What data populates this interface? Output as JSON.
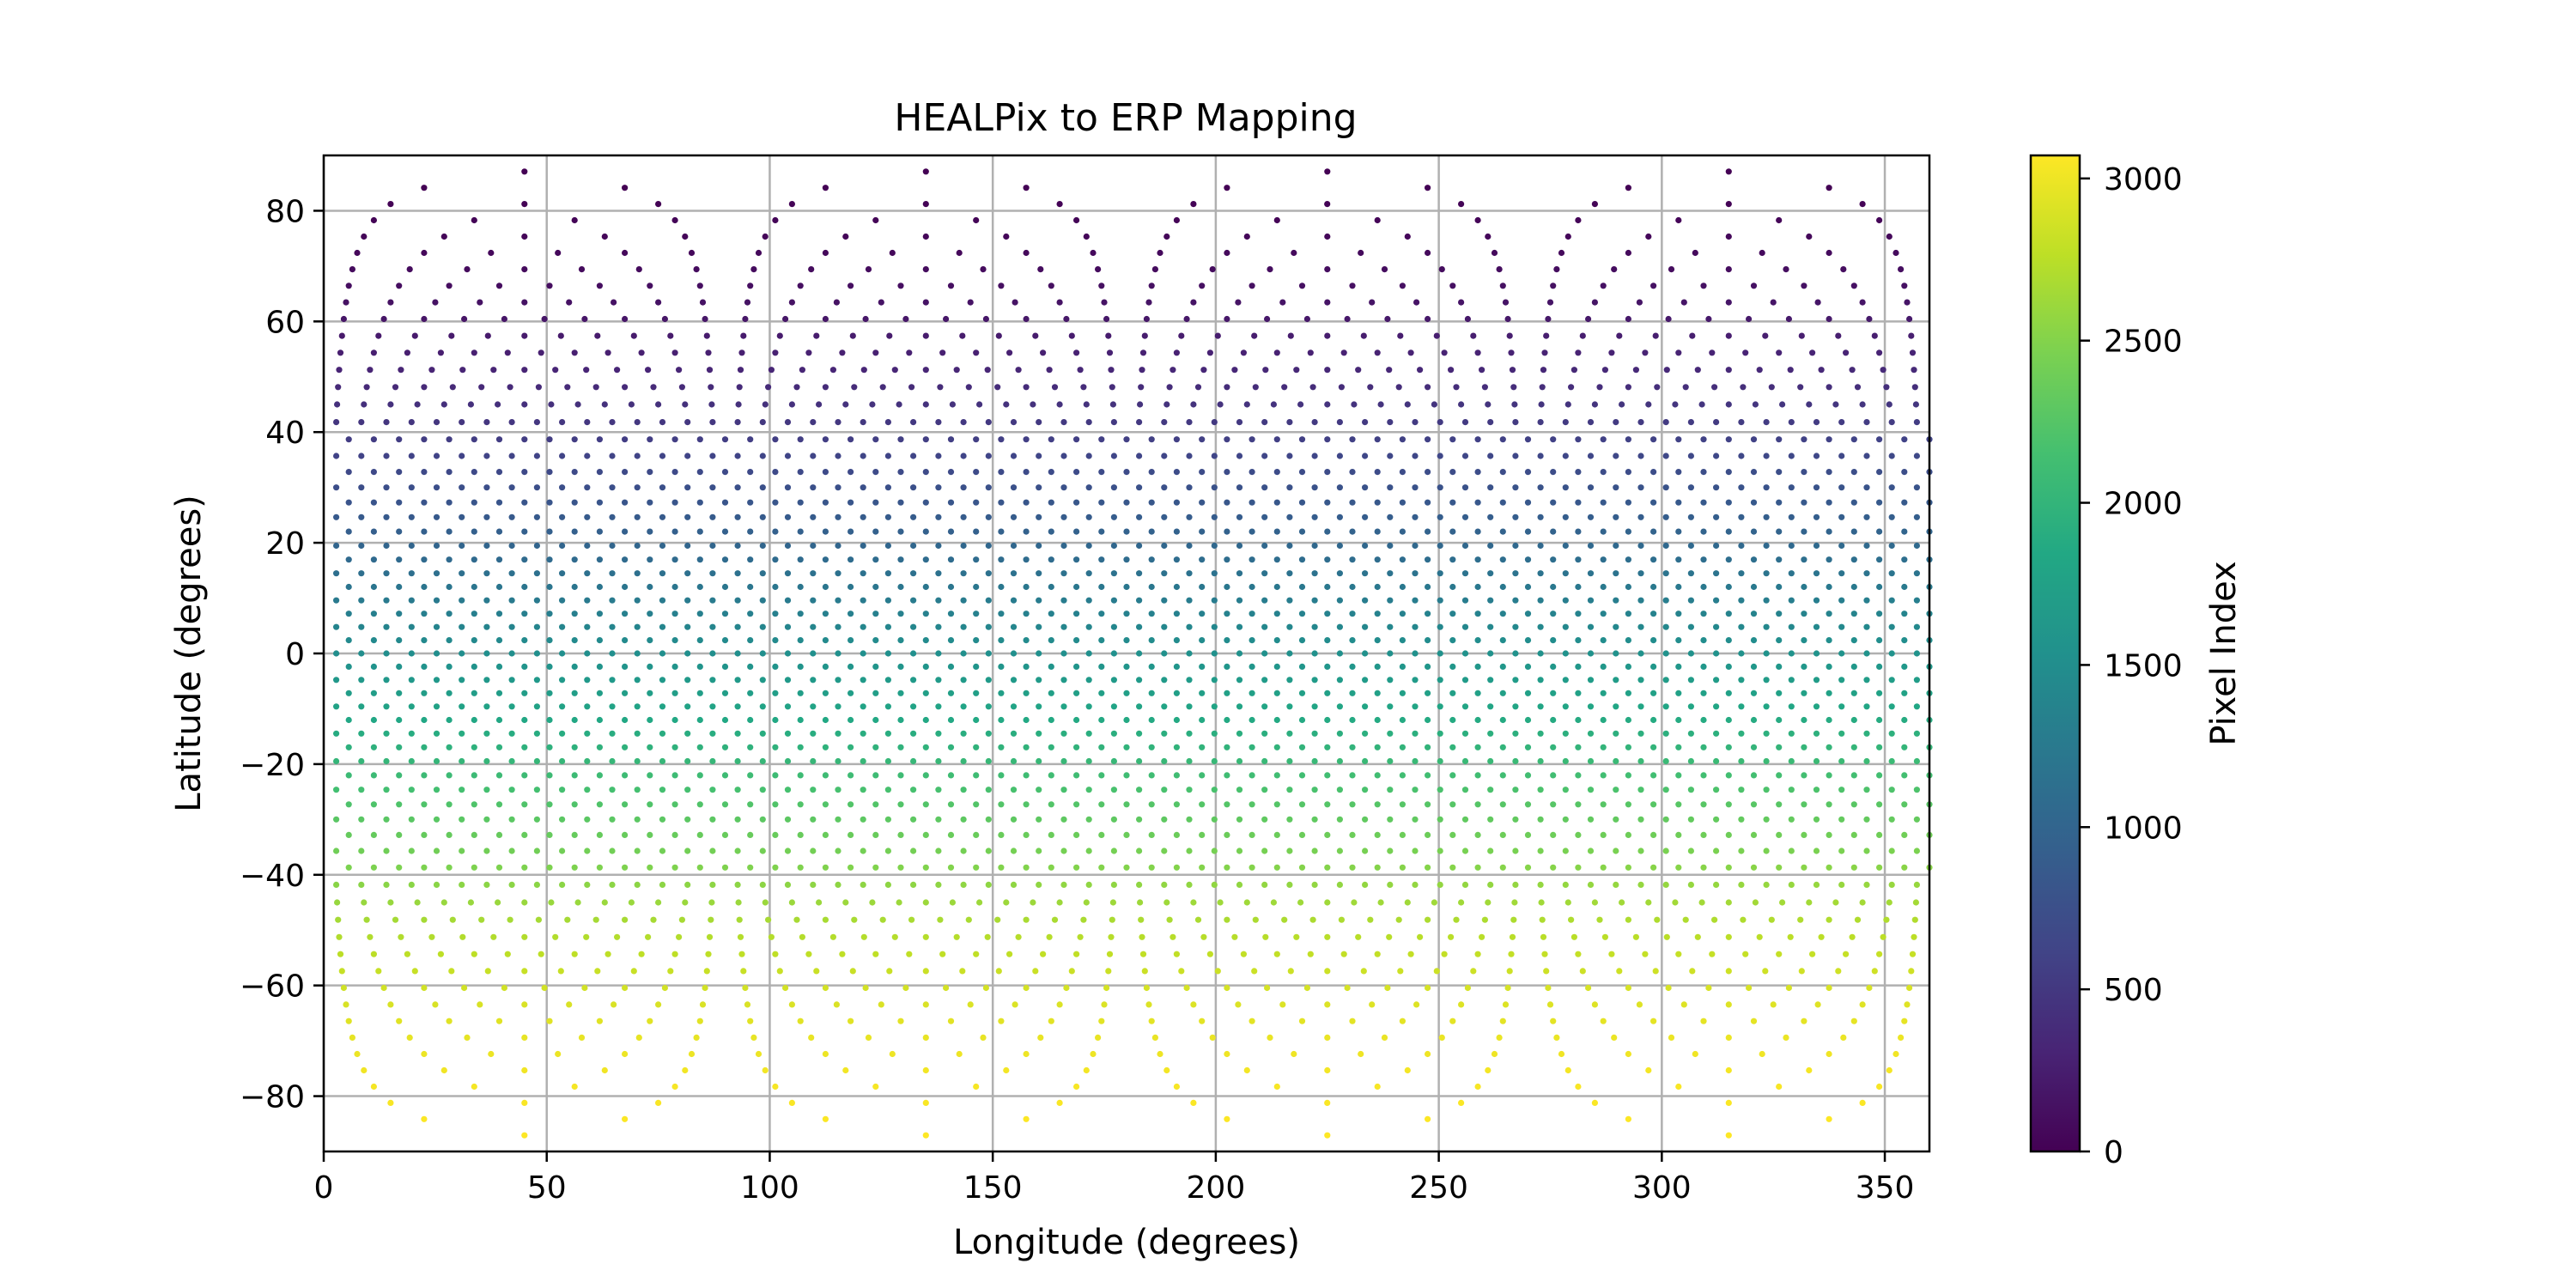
{
  "chart_data": {
    "type": "scatter",
    "title": "HEALPix to ERP Mapping",
    "xlabel": "Longitude (degrees)",
    "ylabel": "Latitude (degrees)",
    "xlim": [
      0,
      360
    ],
    "ylim": [
      -90,
      90
    ],
    "xticks": [
      0,
      50,
      100,
      150,
      200,
      250,
      300,
      350
    ],
    "yticks": [
      -80,
      -60,
      -40,
      -20,
      0,
      20,
      40,
      60,
      80
    ],
    "xtick_labels": [
      "0",
      "50",
      "100",
      "150",
      "200",
      "250",
      "300",
      "350"
    ],
    "ytick_labels": [
      "−80",
      "−60",
      "−40",
      "−20",
      "0",
      "20",
      "40",
      "60",
      "80"
    ],
    "grid": true,
    "points": {
      "generator": "HEALPix ring-ordered pixel centers",
      "nside": 16,
      "count": 3072,
      "color_by": "pixel index (0–3071)"
    },
    "colorbar": {
      "label": "Pixel Index",
      "colormap": "viridis",
      "range": [
        0,
        3071
      ],
      "ticks": [
        0,
        500,
        1000,
        1500,
        2000,
        2500,
        3000
      ],
      "tick_labels": [
        "0",
        "500",
        "1000",
        "1500",
        "2000",
        "2500",
        "3000"
      ]
    }
  }
}
